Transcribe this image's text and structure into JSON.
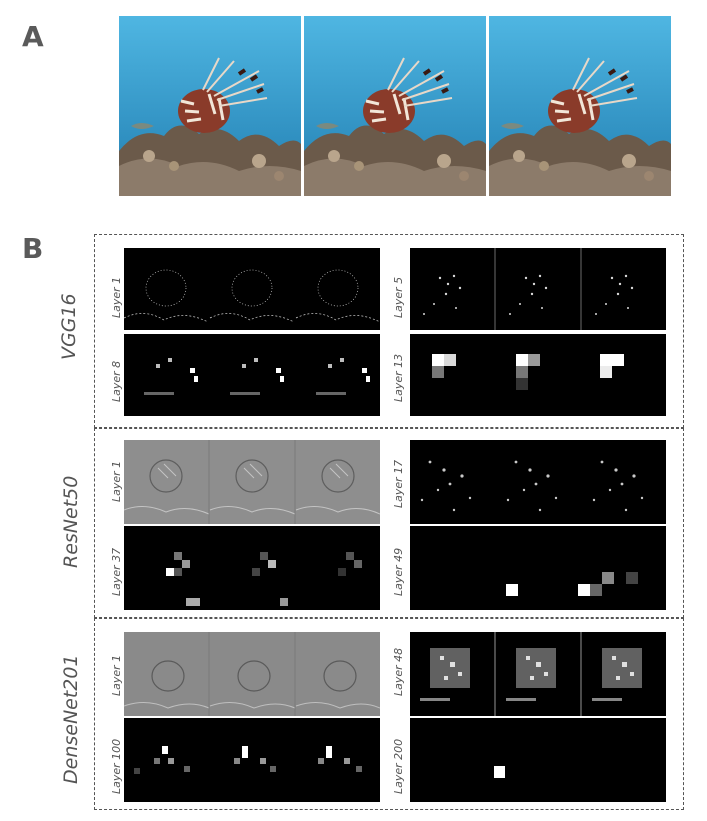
{
  "panels": {
    "a": "A",
    "b": "B"
  },
  "models": [
    {
      "name": "VGG16",
      "layers": [
        "Layer 1",
        "Layer 5",
        "Layer 8",
        "Layer 13"
      ]
    },
    {
      "name": "ResNet50",
      "layers": [
        "Layer 1",
        "Layer 17",
        "Layer 37",
        "Layer 49"
      ]
    },
    {
      "name": "DenseNet201",
      "layers": [
        "Layer 1",
        "Layer 48",
        "Layer 100",
        "Layer 200"
      ]
    }
  ],
  "colors": {
    "water": "#3fa6d6",
    "fish": "#8a3b2a",
    "reef": "#6b5a4a",
    "box_border": "#555555"
  }
}
